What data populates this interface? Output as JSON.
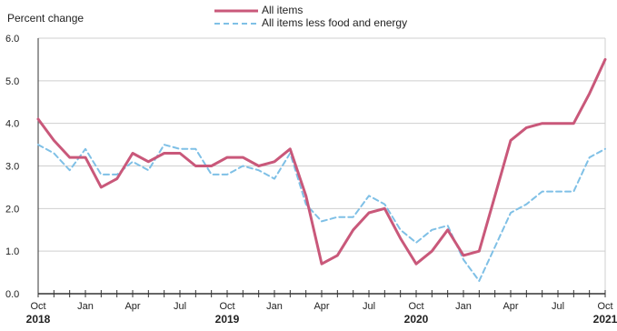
{
  "chart_data": {
    "type": "line",
    "ylabel": "Percent change",
    "ylim": [
      0,
      6
    ],
    "yticks": [
      "0.0",
      "1.0",
      "2.0",
      "3.0",
      "4.0",
      "5.0",
      "6.0"
    ],
    "grid": true,
    "legend_position": "top-center",
    "x": [
      "2018-10",
      "2018-11",
      "2018-12",
      "2019-01",
      "2019-02",
      "2019-03",
      "2019-04",
      "2019-05",
      "2019-06",
      "2019-07",
      "2019-08",
      "2019-09",
      "2019-10",
      "2019-11",
      "2019-12",
      "2020-01",
      "2020-02",
      "2020-03",
      "2020-04",
      "2020-05",
      "2020-06",
      "2020-07",
      "2020-08",
      "2020-09",
      "2020-10",
      "2020-11",
      "2020-12",
      "2021-01",
      "2021-02",
      "2021-03",
      "2021-04",
      "2021-05",
      "2021-06",
      "2021-07",
      "2021-08",
      "2021-09",
      "2021-10"
    ],
    "xtick_labels": [
      {
        "label": "Oct",
        "x": "2018-10",
        "year": "2018"
      },
      {
        "label": "Jan",
        "x": "2019-01"
      },
      {
        "label": "Apr",
        "x": "2019-04"
      },
      {
        "label": "Jul",
        "x": "2019-07"
      },
      {
        "label": "Oct",
        "x": "2019-10",
        "year": "2019"
      },
      {
        "label": "Jan",
        "x": "2020-01"
      },
      {
        "label": "Apr",
        "x": "2020-04"
      },
      {
        "label": "Jul",
        "x": "2020-07"
      },
      {
        "label": "Oct",
        "x": "2020-10",
        "year": "2020"
      },
      {
        "label": "Jan",
        "x": "2021-01"
      },
      {
        "label": "Apr",
        "x": "2021-04"
      },
      {
        "label": "Jul",
        "x": "2021-07"
      },
      {
        "label": "Oct",
        "x": "2021-10",
        "year": "2021"
      }
    ],
    "series": [
      {
        "name": "All items",
        "color": "#c9587a",
        "style": "solid",
        "values": [
          4.1,
          3.6,
          3.2,
          3.2,
          2.5,
          2.7,
          3.3,
          3.1,
          3.3,
          3.3,
          3.0,
          3.0,
          3.2,
          3.2,
          3.0,
          3.1,
          3.4,
          2.3,
          0.7,
          0.9,
          1.5,
          1.9,
          2.0,
          1.3,
          0.7,
          1.0,
          1.5,
          0.9,
          1.0,
          2.3,
          3.6,
          3.9,
          4.0,
          4.0,
          4.0,
          4.7,
          5.5
        ]
      },
      {
        "name": "All items less food and energy",
        "color": "#7fc0e6",
        "style": "dashed",
        "values": [
          3.5,
          3.3,
          2.9,
          3.4,
          2.8,
          2.8,
          3.1,
          2.9,
          3.5,
          3.4,
          3.4,
          2.8,
          2.8,
          3.0,
          2.9,
          2.7,
          3.3,
          2.1,
          1.7,
          1.8,
          1.8,
          2.3,
          2.1,
          1.5,
          1.2,
          1.5,
          1.6,
          0.8,
          0.3,
          1.1,
          1.9,
          2.1,
          2.4,
          2.4,
          2.4,
          3.2,
          3.4
        ]
      }
    ]
  }
}
